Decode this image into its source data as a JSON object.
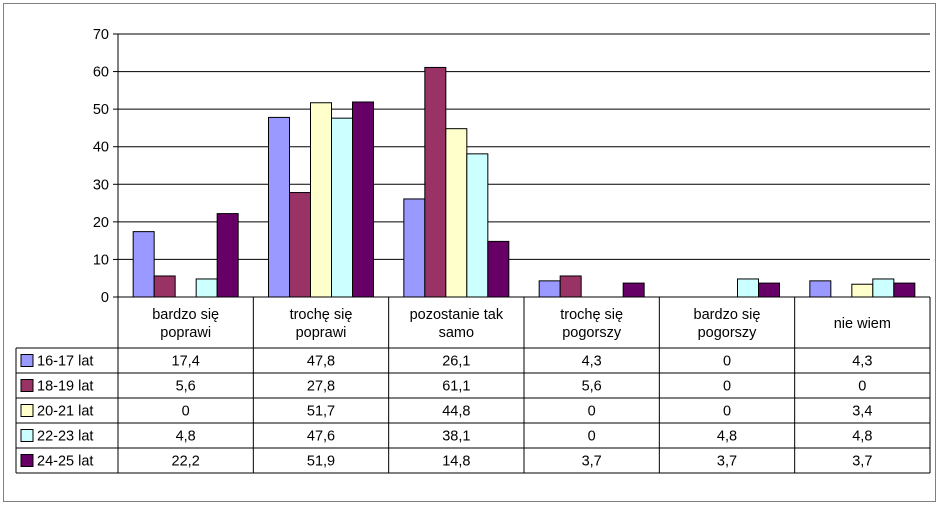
{
  "chart_data": {
    "type": "bar",
    "title": "",
    "xlabel": "",
    "ylabel": "",
    "ylim": [
      0,
      70
    ],
    "yticks": [
      0,
      10,
      20,
      30,
      40,
      50,
      60,
      70
    ],
    "grid": true,
    "legend_position": "table-left",
    "categories": [
      [
        "bardzo się",
        "poprawi"
      ],
      [
        "trochę się",
        "poprawi"
      ],
      [
        "pozostanie tak",
        "samo"
      ],
      [
        "trochę się",
        "pogorszy"
      ],
      [
        "bardzo się",
        "pogorszy"
      ],
      [
        "nie wiem"
      ]
    ],
    "series": [
      {
        "name": "16-17 lat",
        "color": "#9999ff",
        "values": [
          17.4,
          47.8,
          26.1,
          4.3,
          0,
          4.3
        ],
        "labels": [
          "17,4",
          "47,8",
          "26,1",
          "4,3",
          "0",
          "4,3"
        ]
      },
      {
        "name": "18-19 lat",
        "color": "#993366",
        "values": [
          5.6,
          27.8,
          61.1,
          5.6,
          0,
          0
        ],
        "labels": [
          "5,6",
          "27,8",
          "61,1",
          "5,6",
          "0",
          "0"
        ]
      },
      {
        "name": "20-21 lat",
        "color": "#ffffcc",
        "values": [
          0,
          51.7,
          44.8,
          0,
          0,
          3.4
        ],
        "labels": [
          "0",
          "51,7",
          "44,8",
          "0",
          "0",
          "3,4"
        ]
      },
      {
        "name": "22-23 lat",
        "color": "#ccffff",
        "values": [
          4.8,
          47.6,
          38.1,
          0,
          4.8,
          4.8
        ],
        "labels": [
          "4,8",
          "47,6",
          "38,1",
          "0",
          "4,8",
          "4,8"
        ]
      },
      {
        "name": "24-25 lat",
        "color": "#660066",
        "values": [
          22.2,
          51.9,
          14.8,
          3.7,
          3.7,
          3.7
        ],
        "labels": [
          "22,2",
          "51,9",
          "14,8",
          "3,7",
          "3,7",
          "3,7"
        ]
      }
    ]
  }
}
